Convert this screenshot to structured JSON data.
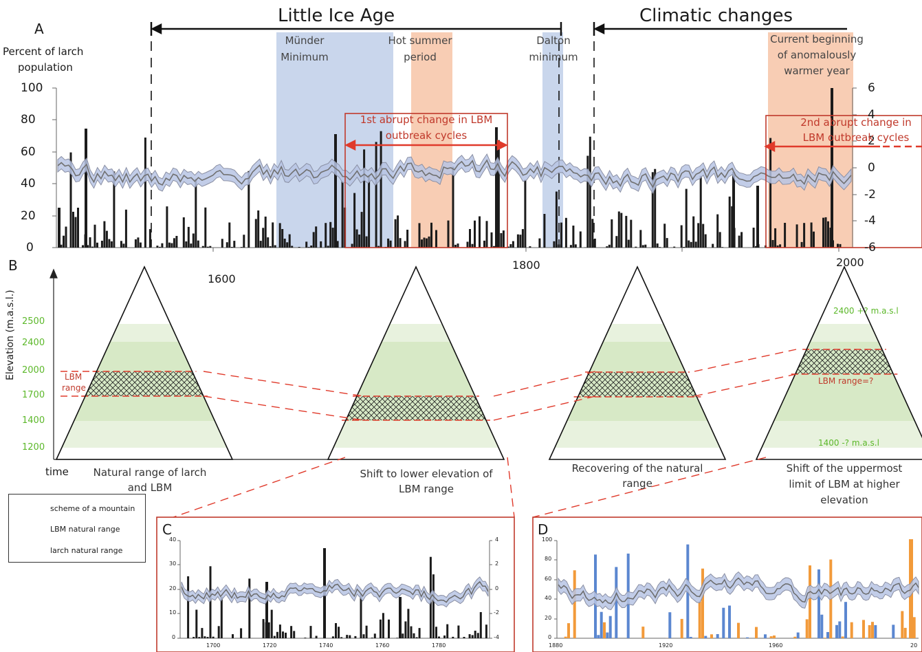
{
  "headers": {
    "little_ice_age": "Little Ice Age",
    "climatic_changes": "Climatic changes"
  },
  "panels": {
    "a": "A",
    "b": "B",
    "c": "C",
    "d": "D"
  },
  "panel_a": {
    "left_axis_title_line1": "Percent of larch",
    "left_axis_title_line2": "population",
    "left_ticks": [
      "100",
      "80",
      "60",
      "40",
      "20",
      "0"
    ],
    "right_ticks": [
      "6",
      "4",
      "2",
      "0",
      "-2",
      "-4",
      "-6"
    ],
    "year_ticks": [
      "1600",
      "1800",
      "2000"
    ],
    "periods": {
      "munder_line1": "Münder",
      "munder_line2": "Minimum",
      "hot_line1": "Hot summer",
      "hot_line2": "period",
      "dalton_line1": "Dalton",
      "dalton_line2": "minimum",
      "current_line1": "Current beginning",
      "current_line2": "of anomalously",
      "current_line3": "warmer year"
    },
    "change1_line1": "1st abrupt change in LBM",
    "change1_line2": "outbreak cycles",
    "change2_line1": "2nd abrupt change in",
    "change2_line2": "LBM outbreak cycles"
  },
  "panel_b": {
    "y_axis_title": "Elevation (m.a.s.l.)",
    "elev_ticks": [
      "2500",
      "2400",
      "2000",
      "1700",
      "1400",
      "1200"
    ],
    "time_label": "time",
    "lbm_line1": "LBM",
    "lbm_line2": "range",
    "lbm_q": "LBM range=?",
    "upper_q": "2400 +? m.a.s.l",
    "lower_q": "1400 -? m.a.s.l",
    "cap1_line1": "Natural range of larch",
    "cap1_line2": "and LBM",
    "cap2_line1": "Shift to lower elevation of",
    "cap2_line2": "LBM range",
    "cap3_line1": "Recovering of the natural",
    "cap3_line2": "range",
    "cap4_line1": "Shift of the uppermost",
    "cap4_line2": "limit of LBM at higher",
    "cap4_line3": "elevation"
  },
  "legend": {
    "mountain": "scheme of a mountain",
    "lbm": "LBM natural range",
    "larch": "larch natural range"
  },
  "panel_c": {
    "left_ticks": [
      "40",
      "30",
      "20",
      "10",
      "0"
    ],
    "right_ticks": [
      "4",
      "2",
      "0",
      "-2",
      "-4"
    ],
    "x_ticks": [
      "1700",
      "1720",
      "1740",
      "1760",
      "1780"
    ]
  },
  "panel_d": {
    "left_ticks": [
      "100",
      "80",
      "60",
      "40",
      "20",
      "0"
    ],
    "x_ticks": [
      "1880",
      "1920",
      "1960",
      "20"
    ]
  },
  "colors": {
    "blue_band": "#c9d6ec",
    "orange_band": "#f8cdb4",
    "green_range": "#d5e8c3",
    "red": "#c0392b",
    "bar": "#1b1b1b",
    "series_fill": "#b7c4e4",
    "series_line": "#707070",
    "d_blue": "#5b87d0",
    "d_orange": "#f29a3a"
  }
}
